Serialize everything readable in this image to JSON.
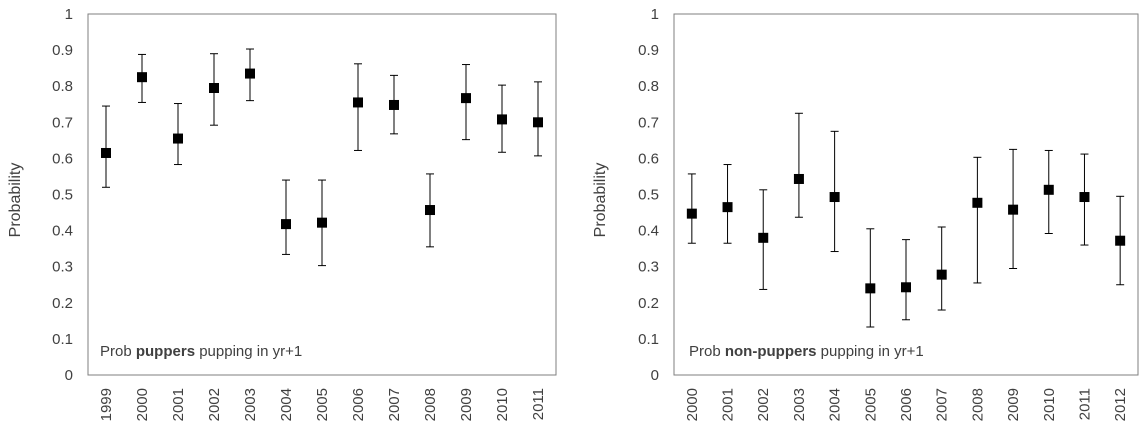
{
  "chart_data": [
    {
      "type": "scatter",
      "error_bars": true,
      "xlabel": "",
      "ylabel": "Probability",
      "ylim": [
        0,
        1
      ],
      "yticks": [
        "0",
        "0.1",
        "0.2",
        "0.3",
        "0.4",
        "0.5",
        "0.6",
        "0.7",
        "0.8",
        "0.9",
        "1"
      ],
      "grid": false,
      "categories": [
        "1999",
        "2000",
        "2001",
        "2002",
        "2003",
        "2004",
        "2005",
        "2006",
        "2007",
        "2008",
        "2009",
        "2010",
        "2011"
      ],
      "values": [
        0.615,
        0.825,
        0.655,
        0.795,
        0.835,
        0.418,
        0.422,
        0.755,
        0.748,
        0.457,
        0.767,
        0.708,
        0.7
      ],
      "lower": [
        0.52,
        0.755,
        0.583,
        0.692,
        0.76,
        0.334,
        0.303,
        0.622,
        0.668,
        0.355,
        0.652,
        0.617,
        0.607
      ],
      "upper": [
        0.745,
        0.888,
        0.752,
        0.89,
        0.903,
        0.54,
        0.54,
        0.862,
        0.83,
        0.557,
        0.86,
        0.803,
        0.812
      ],
      "annotation": {
        "prefix": "Prob ",
        "bold": "puppers",
        "suffix": " pupping in yr+1"
      }
    },
    {
      "type": "scatter",
      "error_bars": true,
      "xlabel": "",
      "ylabel": "Probability",
      "ylim": [
        0,
        1
      ],
      "yticks": [
        "0",
        "0.1",
        "0.2",
        "0.3",
        "0.4",
        "0.5",
        "0.6",
        "0.7",
        "0.8",
        "0.9",
        "1"
      ],
      "grid": false,
      "categories": [
        "2000",
        "2001",
        "2002",
        "2003",
        "2004",
        "2005",
        "2006",
        "2007",
        "2008",
        "2009",
        "2010",
        "2011",
        "2012"
      ],
      "values": [
        0.447,
        0.465,
        0.38,
        0.543,
        0.493,
        0.24,
        0.243,
        0.278,
        0.477,
        0.458,
        0.513,
        0.493,
        0.372
      ],
      "lower": [
        0.365,
        0.365,
        0.237,
        0.437,
        0.342,
        0.133,
        0.153,
        0.18,
        0.255,
        0.295,
        0.392,
        0.36,
        0.25
      ],
      "upper": [
        0.557,
        0.583,
        0.513,
        0.725,
        0.675,
        0.405,
        0.375,
        0.41,
        0.603,
        0.625,
        0.622,
        0.612,
        0.495
      ],
      "annotation": {
        "prefix": "Prob ",
        "bold": "non-puppers",
        "suffix": " pupping in yr+1"
      }
    }
  ]
}
